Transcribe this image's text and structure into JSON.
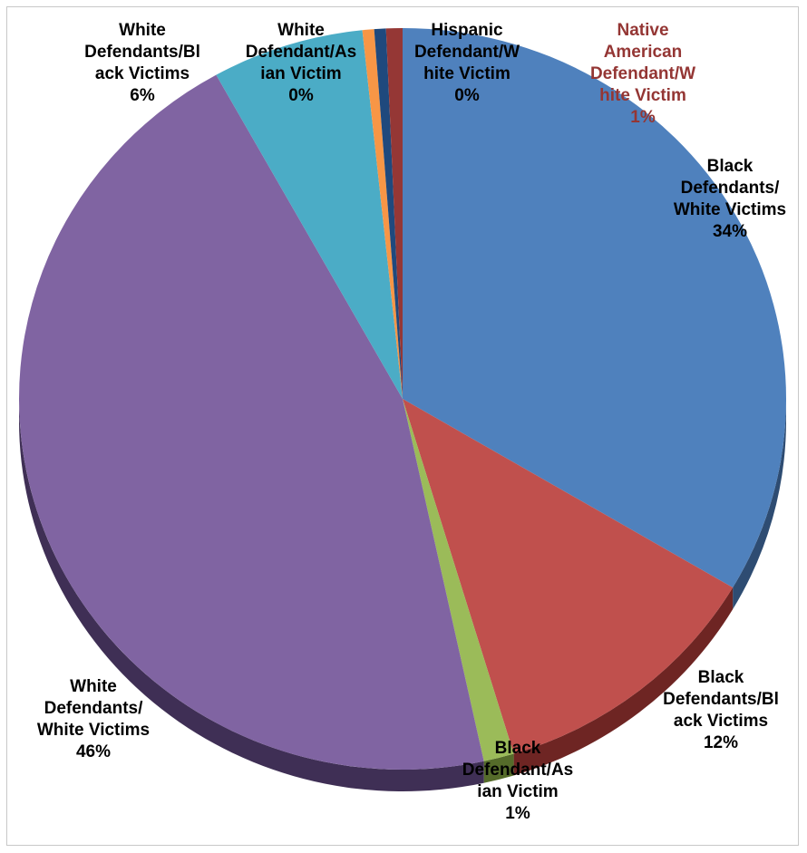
{
  "chart_data": {
    "type": "pie",
    "title": "",
    "slices": [
      {
        "label_lines": [
          "Black",
          "Defendants/",
          "White Victims"
        ],
        "value_label": "34%",
        "value": 34,
        "color": "#4F81BD",
        "side": "#2E4C72",
        "label_color": "#000000"
      },
      {
        "label_lines": [
          "Black",
          "Defendants/Bl",
          "ack Victims"
        ],
        "value_label": "12%",
        "value": 12,
        "color": "#C0504D",
        "side": "#6E2523",
        "label_color": "#000000"
      },
      {
        "label_lines": [
          "Black",
          "Defendant/As",
          "ian Victim"
        ],
        "value_label": "1%",
        "value": 1.3,
        "color": "#9BBB59",
        "side": "#556B2A",
        "label_color": "#000000"
      },
      {
        "label_lines": [
          "White",
          "Defendants/",
          "White Victims"
        ],
        "value_label": "46%",
        "value": 46,
        "color": "#8064A2",
        "side": "#3F2F55",
        "label_color": "#000000"
      },
      {
        "label_lines": [
          "White",
          "Defendants/Bl",
          "ack Victims"
        ],
        "value_label": "6%",
        "value": 6.5,
        "color": "#4BACC6",
        "side": "#2A6575",
        "label_color": "#000000"
      },
      {
        "label_lines": [
          "White",
          "Defendant/As",
          "ian Victim"
        ],
        "value_label": "0%",
        "value": 0.5,
        "color": "#F79646",
        "side": "#9A5520",
        "label_color": "#000000"
      },
      {
        "label_lines": [
          "Hispanic",
          "Defendant/W",
          "hite Victim"
        ],
        "value_label": "0%",
        "value": 0.5,
        "color": "#1F497D",
        "side": "#0F2440",
        "label_color": "#000000"
      },
      {
        "label_lines": [
          "Native",
          "American",
          "Defendant/W",
          "hite Victim"
        ],
        "value_label": "1%",
        "value": 0.7,
        "color": "#953735",
        "side": "#4E1A19",
        "label_color": "#943634"
      }
    ]
  }
}
